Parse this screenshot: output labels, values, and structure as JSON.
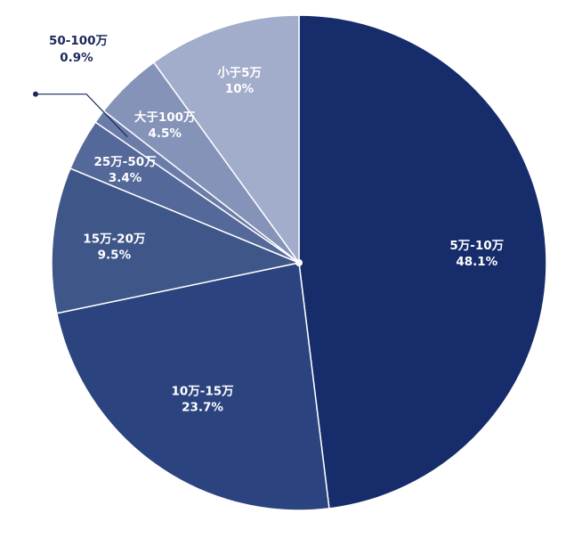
{
  "chart_data": {
    "type": "pie",
    "title": "",
    "start": "top",
    "direction": "clockwise",
    "slices": [
      {
        "label": "5万-10万",
        "value": 48.1,
        "display": "48.1%",
        "color": "#162c6b"
      },
      {
        "label": "10万-15万",
        "value": 23.7,
        "display": "23.7%",
        "color": "#2b447f"
      },
      {
        "label": "15万-20万",
        "value": 9.5,
        "display": "9.5%",
        "color": "#3f5688"
      },
      {
        "label": "25万-50万",
        "value": 3.4,
        "display": "3.4%",
        "color": "#55689a"
      },
      {
        "label": "50-100万",
        "value": 0.9,
        "display": "0.9%",
        "color": "#6b7ca8"
      },
      {
        "label": "大于100万",
        "value": 4.5,
        "display": "4.5%",
        "color": "#8693b8"
      },
      {
        "label": "小于5万",
        "value": 10,
        "display": "10%",
        "color": "#a2adcb"
      }
    ]
  }
}
